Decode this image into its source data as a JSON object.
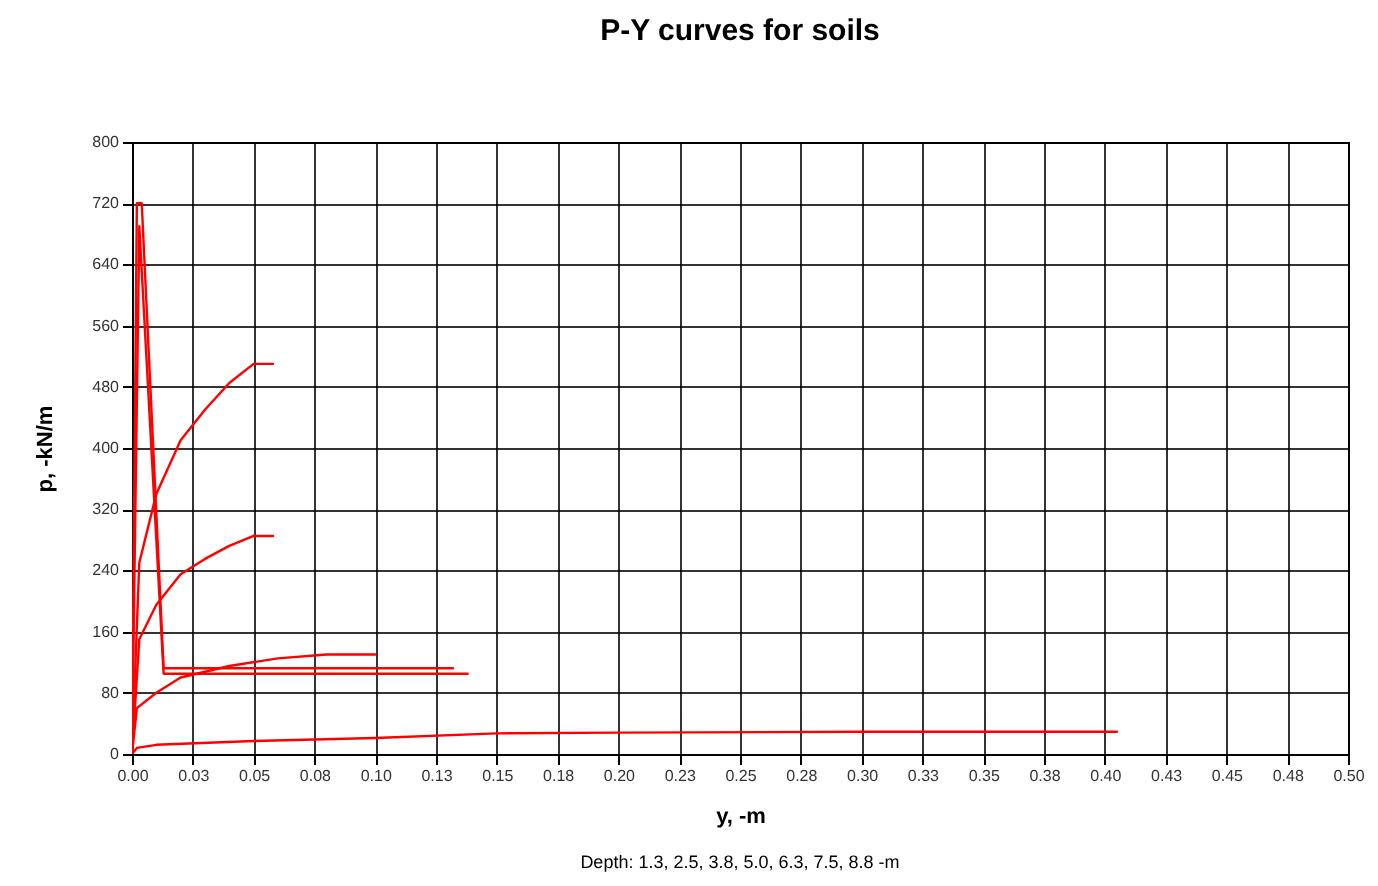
{
  "chart_data": {
    "type": "line",
    "title": "P-Y curves for soils",
    "xlabel": "y, -m",
    "ylabel": "p, -kN/m",
    "annotations": [
      "Depth:  1.3, 2.5, 3.8, 5.0, 6.3, 7.5, 8.8 -m"
    ],
    "series": [
      {
        "color": "#ff0000",
        "x": [
          0,
          0.003,
          0.01,
          0.02,
          0.03,
          0.04,
          0.05,
          0.058
        ],
        "values": [
          0,
          250,
          340,
          410,
          450,
          485,
          510,
          510
        ]
      },
      {
        "color": "#ff0000",
        "x": [
          0,
          0.003,
          0.01,
          0.02,
          0.03,
          0.04,
          0.05,
          0.058
        ],
        "values": [
          0,
          150,
          195,
          235,
          255,
          272,
          285,
          285
        ]
      },
      {
        "color": "#ff0000",
        "x": [
          0,
          0.002,
          0.01,
          0.02,
          0.04,
          0.06,
          0.08,
          0.1
        ],
        "values": [
          0,
          60,
          80,
          100,
          115,
          125,
          130,
          130
        ]
      },
      {
        "color": "#ff0000",
        "x": [
          0,
          0.002,
          0.01,
          0.05,
          0.1,
          0.15,
          0.2,
          0.3,
          0.405
        ],
        "values": [
          0,
          8,
          12,
          17,
          21,
          27,
          28,
          29,
          29
        ]
      },
      {
        "color": "#ff0000",
        "x": [
          0,
          0.002,
          0.004,
          0.013,
          0.132
        ],
        "values": [
          0,
          720,
          720,
          112,
          112
        ]
      },
      {
        "color": "#ff0000",
        "x": [
          0,
          0.003,
          0.013,
          0.138
        ],
        "values": [
          0,
          690,
          105,
          105
        ]
      }
    ],
    "xlim": [
      0,
      0.5
    ],
    "ylim": [
      0,
      800
    ],
    "xticks": [
      {
        "value": 0,
        "label": "0.00"
      },
      {
        "value": 0.025,
        "label": "0.03"
      },
      {
        "value": 0.05,
        "label": "0.05"
      },
      {
        "value": 0.075,
        "label": "0.08"
      },
      {
        "value": 0.1,
        "label": "0.10"
      },
      {
        "value": 0.125,
        "label": "0.13"
      },
      {
        "value": 0.15,
        "label": "0.15"
      },
      {
        "value": 0.175,
        "label": "0.18"
      },
      {
        "value": 0.2,
        "label": "0.20"
      },
      {
        "value": 0.225,
        "label": "0.23"
      },
      {
        "value": 0.25,
        "label": "0.25"
      },
      {
        "value": 0.275,
        "label": "0.28"
      },
      {
        "value": 0.3,
        "label": "0.30"
      },
      {
        "value": 0.325,
        "label": "0.33"
      },
      {
        "value": 0.35,
        "label": "0.35"
      },
      {
        "value": 0.375,
        "label": "0.38"
      },
      {
        "value": 0.4,
        "label": "0.40"
      },
      {
        "value": 0.425,
        "label": "0.43"
      },
      {
        "value": 0.45,
        "label": "0.45"
      },
      {
        "value": 0.475,
        "label": "0.48"
      },
      {
        "value": 0.5,
        "label": "0.50"
      }
    ],
    "yticks": [
      0,
      80,
      160,
      240,
      320,
      400,
      480,
      560,
      640,
      720,
      800
    ],
    "grid": true,
    "legend": false,
    "marker": "none",
    "line_style": "solid"
  }
}
